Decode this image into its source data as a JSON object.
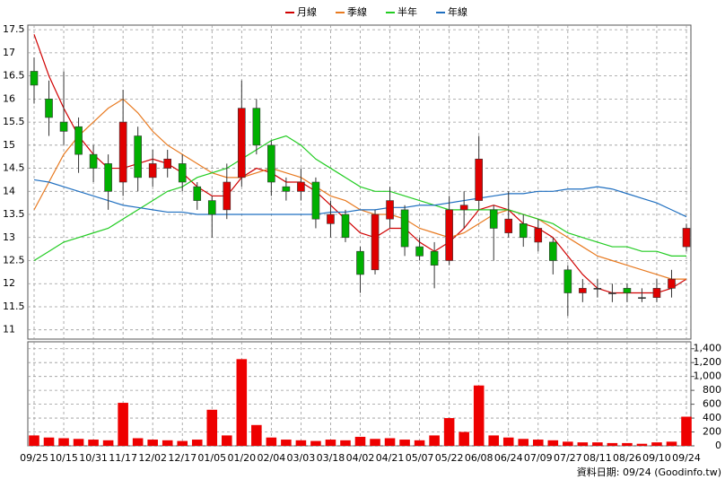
{
  "chart_data": {
    "type": "candlestick",
    "legend": [
      "月線",
      "季線",
      "半年",
      "年線"
    ],
    "categories": [
      "09/25",
      null,
      "10/15",
      null,
      "10/31",
      null,
      "11/17",
      null,
      "12/02",
      null,
      "12/17",
      null,
      "01/05",
      null,
      "01/20",
      null,
      "02/04",
      null,
      "03/03",
      null,
      "03/18",
      null,
      "04/02",
      null,
      "04/21",
      null,
      "05/07",
      null,
      "05/22",
      null,
      "06/08",
      null,
      "06/24",
      null,
      "07/09",
      null,
      "07/27",
      null,
      "08/11",
      null,
      "08/26",
      null,
      "09/10",
      null,
      "09/24"
    ],
    "open": [
      16.6,
      16.0,
      15.5,
      15.4,
      14.8,
      14.6,
      14.2,
      15.2,
      14.3,
      14.5,
      14.6,
      14.1,
      13.8,
      13.6,
      14.3,
      15.8,
      15.0,
      14.1,
      14.0,
      14.2,
      13.3,
      13.5,
      12.7,
      12.3,
      13.4,
      13.6,
      12.8,
      12.7,
      12.5,
      13.6,
      13.8,
      13.6,
      13.1,
      13.3,
      12.9,
      12.9,
      12.3,
      11.8,
      11.9,
      11.8,
      11.9,
      11.7,
      11.7,
      11.9,
      12.8
    ],
    "high": [
      16.9,
      16.4,
      16.6,
      15.6,
      15.0,
      14.8,
      16.2,
      15.4,
      14.9,
      14.9,
      14.8,
      14.2,
      13.9,
      14.6,
      16.4,
      16.0,
      15.1,
      14.3,
      14.5,
      14.3,
      13.8,
      13.6,
      12.8,
      13.6,
      14.1,
      13.7,
      13.0,
      12.9,
      13.9,
      14.0,
      15.2,
      13.7,
      14.0,
      13.5,
      13.4,
      13.0,
      12.4,
      12.1,
      12.1,
      12.0,
      12.0,
      11.9,
      12.1,
      12.3,
      13.3
    ],
    "low": [
      15.9,
      15.2,
      15.0,
      14.4,
      14.2,
      13.6,
      13.9,
      14.0,
      14.1,
      14.3,
      14.0,
      13.6,
      13.0,
      13.4,
      14.1,
      14.8,
      13.9,
      13.8,
      13.8,
      13.2,
      13.0,
      12.9,
      11.8,
      12.2,
      13.2,
      12.6,
      12.5,
      11.9,
      12.4,
      13.2,
      13.6,
      12.5,
      13.0,
      12.8,
      12.7,
      12.2,
      11.3,
      11.6,
      11.7,
      11.6,
      11.6,
      11.6,
      11.6,
      11.7,
      12.7
    ],
    "close": [
      16.3,
      15.6,
      15.3,
      14.8,
      14.5,
      14.0,
      15.5,
      14.3,
      14.6,
      14.7,
      14.2,
      13.8,
      13.5,
      14.2,
      15.8,
      15.0,
      14.2,
      14.0,
      14.2,
      13.4,
      13.5,
      13.0,
      12.2,
      13.5,
      13.8,
      12.8,
      12.6,
      12.4,
      13.6,
      13.7,
      14.7,
      13.2,
      13.4,
      13.0,
      13.2,
      12.5,
      11.8,
      11.9,
      11.9,
      11.8,
      11.8,
      11.7,
      11.9,
      12.1,
      13.2
    ],
    "up_color": "#e00000",
    "down_color": "#00b000",
    "series": [
      {
        "name": "月線",
        "color": "#d00000",
        "values": [
          17.4,
          16.5,
          15.8,
          15.2,
          14.8,
          14.5,
          14.5,
          14.6,
          14.7,
          14.6,
          14.4,
          14.1,
          13.9,
          13.9,
          14.3,
          14.5,
          14.4,
          14.2,
          14.2,
          14.0,
          13.7,
          13.4,
          13.1,
          13.0,
          13.2,
          13.2,
          12.9,
          12.7,
          12.9,
          13.2,
          13.6,
          13.7,
          13.6,
          13.3,
          13.2,
          13.0,
          12.6,
          12.2,
          11.9,
          11.8,
          11.8,
          11.8,
          11.8,
          11.9,
          12.1
        ]
      },
      {
        "name": "季線",
        "color": "#e87a20",
        "values": [
          13.6,
          14.2,
          14.8,
          15.2,
          15.5,
          15.8,
          16.0,
          15.7,
          15.3,
          15.0,
          14.8,
          14.6,
          14.4,
          14.3,
          14.3,
          14.4,
          14.5,
          14.4,
          14.3,
          14.1,
          13.9,
          13.8,
          13.6,
          13.5,
          13.5,
          13.4,
          13.2,
          13.1,
          13.0,
          13.1,
          13.3,
          13.5,
          13.6,
          13.5,
          13.4,
          13.2,
          13.0,
          12.8,
          12.6,
          12.5,
          12.4,
          12.3,
          12.2,
          12.1,
          12.1
        ]
      },
      {
        "name": "半年",
        "color": "#22cc22",
        "values": [
          12.5,
          12.7,
          12.9,
          13.0,
          13.1,
          13.2,
          13.4,
          13.6,
          13.8,
          14.0,
          14.1,
          14.3,
          14.4,
          14.5,
          14.7,
          14.9,
          15.1,
          15.2,
          15.0,
          14.7,
          14.5,
          14.3,
          14.1,
          14.0,
          14.0,
          13.9,
          13.8,
          13.7,
          13.6,
          13.6,
          13.6,
          13.6,
          13.6,
          13.5,
          13.4,
          13.3,
          13.1,
          13.0,
          12.9,
          12.8,
          12.8,
          12.7,
          12.7,
          12.6,
          12.6
        ]
      },
      {
        "name": "年線",
        "color": "#1f6fc0",
        "values": [
          14.25,
          14.2,
          14.1,
          14.0,
          13.9,
          13.8,
          13.7,
          13.65,
          13.6,
          13.55,
          13.55,
          13.5,
          13.5,
          13.5,
          13.5,
          13.5,
          13.5,
          13.5,
          13.5,
          13.5,
          13.55,
          13.55,
          13.6,
          13.6,
          13.65,
          13.65,
          13.7,
          13.7,
          13.75,
          13.8,
          13.85,
          13.9,
          13.95,
          13.95,
          14.0,
          14.0,
          14.05,
          14.05,
          14.1,
          14.05,
          13.95,
          13.85,
          13.75,
          13.6,
          13.45
        ]
      }
    ],
    "volume": [
      150,
      120,
      110,
      100,
      90,
      80,
      620,
      110,
      90,
      80,
      70,
      90,
      520,
      150,
      1250,
      300,
      120,
      90,
      80,
      70,
      90,
      80,
      130,
      100,
      110,
      90,
      80,
      150,
      400,
      200,
      870,
      150,
      120,
      100,
      90,
      80,
      60,
      50,
      50,
      40,
      40,
      30,
      50,
      60,
      420
    ],
    "volume_color": "#ee0000",
    "ylim": [
      10.8,
      17.6
    ],
    "yticks": [
      11,
      11.5,
      12,
      12.5,
      13,
      13.5,
      14,
      14.5,
      15,
      15.5,
      16,
      16.5,
      17,
      17.5
    ],
    "y2lim": [
      0,
      1500
    ],
    "y2ticks": [
      0,
      200,
      400,
      600,
      800,
      {
        "value": 1000,
        "label": "1,000"
      },
      {
        "value": 1200,
        "label": "1,200"
      },
      {
        "value": 1400,
        "label": "1,400"
      }
    ],
    "grid": true,
    "source": "資料日期: 09/24 (Goodinfo.tw)"
  }
}
